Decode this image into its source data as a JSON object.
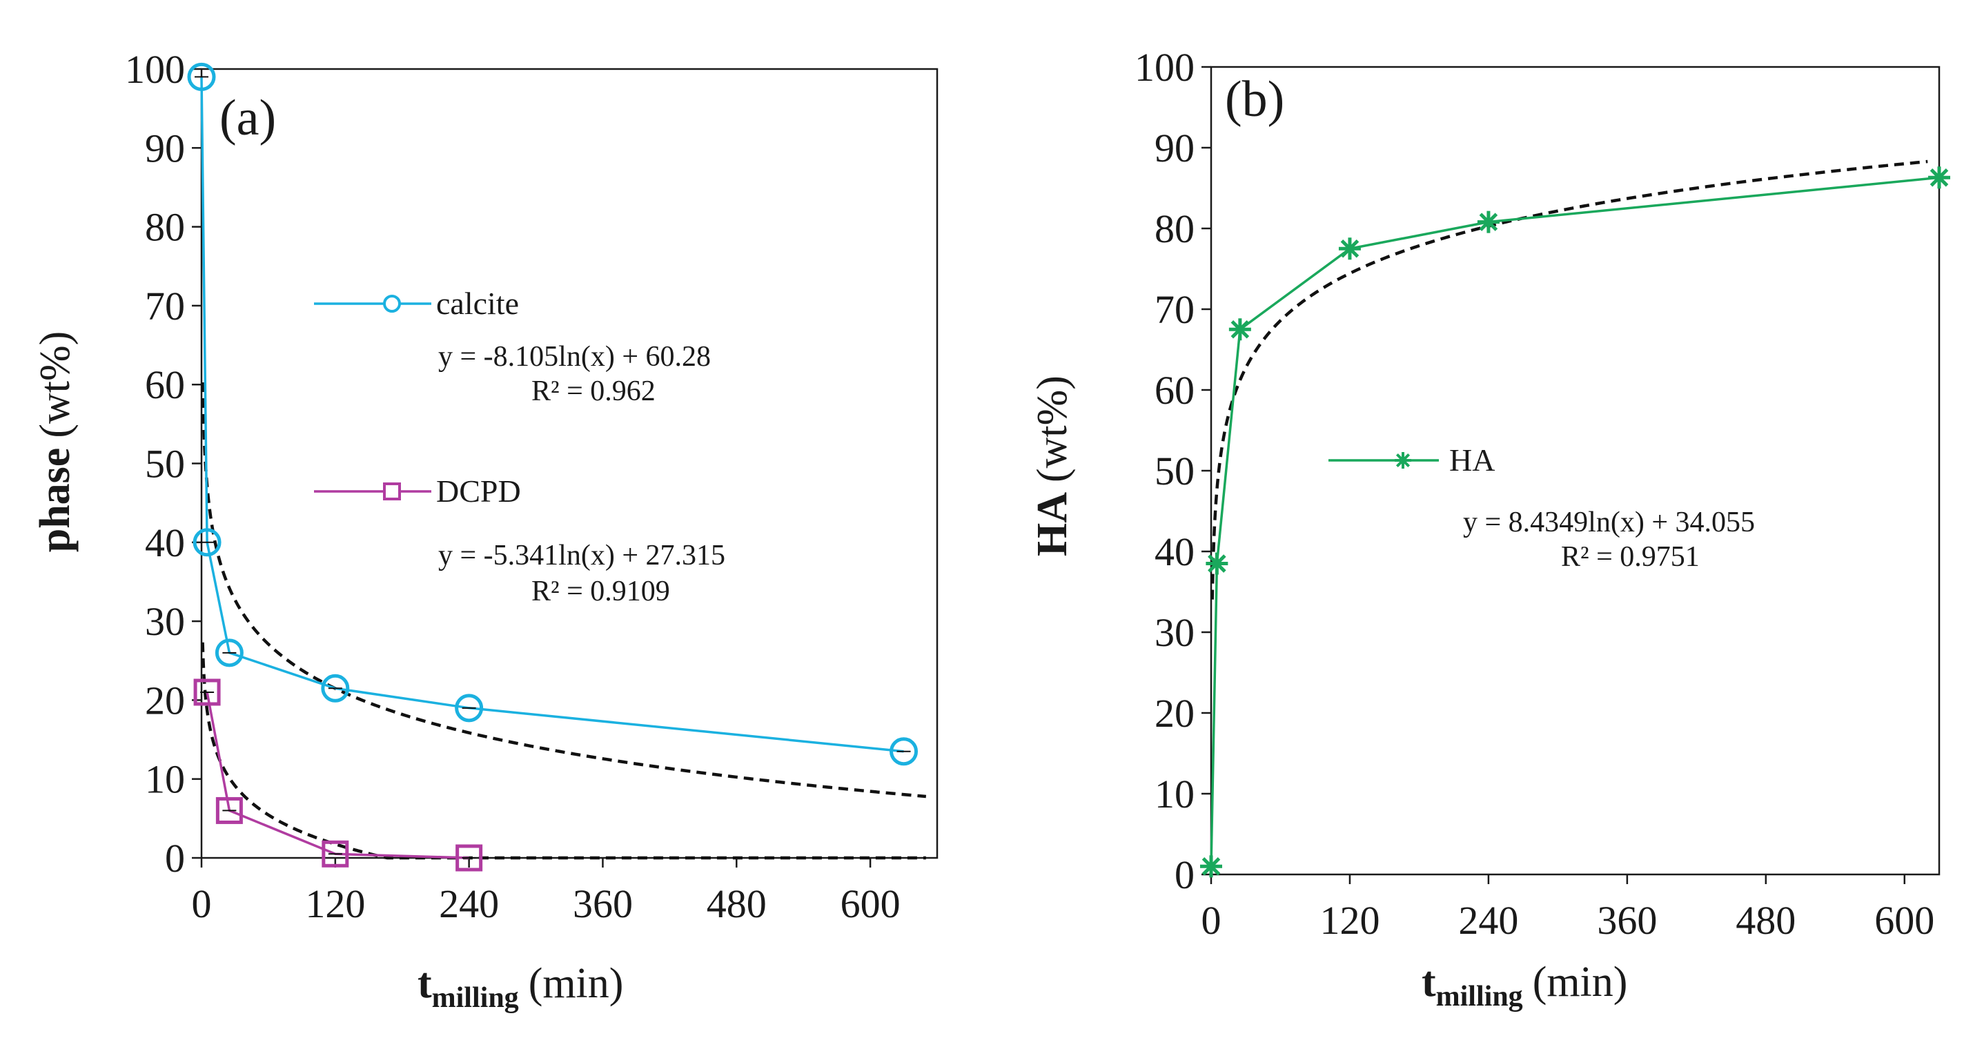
{
  "chart_data": [
    {
      "panel_label": "(a)",
      "type": "line",
      "ylabel_main": "phase",
      "ylabel_unit": "(wt%)",
      "xlabel_main": "t",
      "xlabel_sub": "milling",
      "xlabel_unit": "(min)",
      "xlim": [
        0,
        660
      ],
      "ylim": [
        0,
        100
      ],
      "xticks": [
        0,
        120,
        240,
        360,
        480,
        600
      ],
      "xtick_labels": [
        "0",
        "120",
        "240",
        "360",
        "480",
        "600"
      ],
      "yticks": [
        0,
        10,
        20,
        30,
        40,
        50,
        60,
        70,
        80,
        90,
        100
      ],
      "ytick_labels": [
        "0",
        "10",
        "20",
        "30",
        "40",
        "50",
        "60",
        "70",
        "80",
        "90",
        "100"
      ],
      "series": [
        {
          "name": "calcite",
          "color": "#1bb1e0",
          "marker": "circle",
          "x": [
            0,
            5,
            25,
            120,
            240,
            630
          ],
          "y": [
            99,
            40,
            26,
            21.5,
            19,
            13.5
          ],
          "fit": {
            "a": -8.105,
            "b": 60.28
          },
          "equation": "y = -8.105ln(x) + 60.28",
          "r2": "R² = 0.962"
        },
        {
          "name": "DCPD",
          "color": "#b03ca0",
          "marker": "square",
          "x": [
            5,
            25,
            120,
            240
          ],
          "y": [
            21,
            6,
            0.5,
            0
          ],
          "fit": {
            "a": -5.341,
            "b": 27.315
          },
          "equation": "y = -5.341ln(x) + 27.315",
          "r2": "R² = 0.9109"
        }
      ]
    },
    {
      "panel_label": "(b)",
      "type": "line",
      "ylabel_main": "HA",
      "ylabel_unit": "(wt%)",
      "xlabel_main": "t",
      "xlabel_sub": "milling",
      "xlabel_unit": "(min)",
      "xlim": [
        0,
        630
      ],
      "ylim": [
        0,
        100
      ],
      "xticks": [
        0,
        120,
        240,
        360,
        480,
        600
      ],
      "xtick_labels": [
        "0",
        "120",
        "240",
        "360",
        "480",
        "600"
      ],
      "yticks": [
        0,
        10,
        20,
        30,
        40,
        50,
        60,
        70,
        80,
        90,
        100
      ],
      "ytick_labels": [
        "0",
        "10",
        "20",
        "30",
        "40",
        "50",
        "60",
        "70",
        "80",
        "90",
        "100"
      ],
      "series": [
        {
          "name": "HA",
          "color": "#1aa85c",
          "marker": "asterisk",
          "x": [
            0,
            5,
            25,
            120,
            240,
            630
          ],
          "y": [
            1,
            38.5,
            67.5,
            77.5,
            80.8,
            86.3
          ],
          "fit": {
            "a": 8.4349,
            "b": 34.055
          },
          "equation": "y = 8.4349ln(x) + 34.055",
          "r2": "R² = 0.9751"
        }
      ]
    }
  ]
}
